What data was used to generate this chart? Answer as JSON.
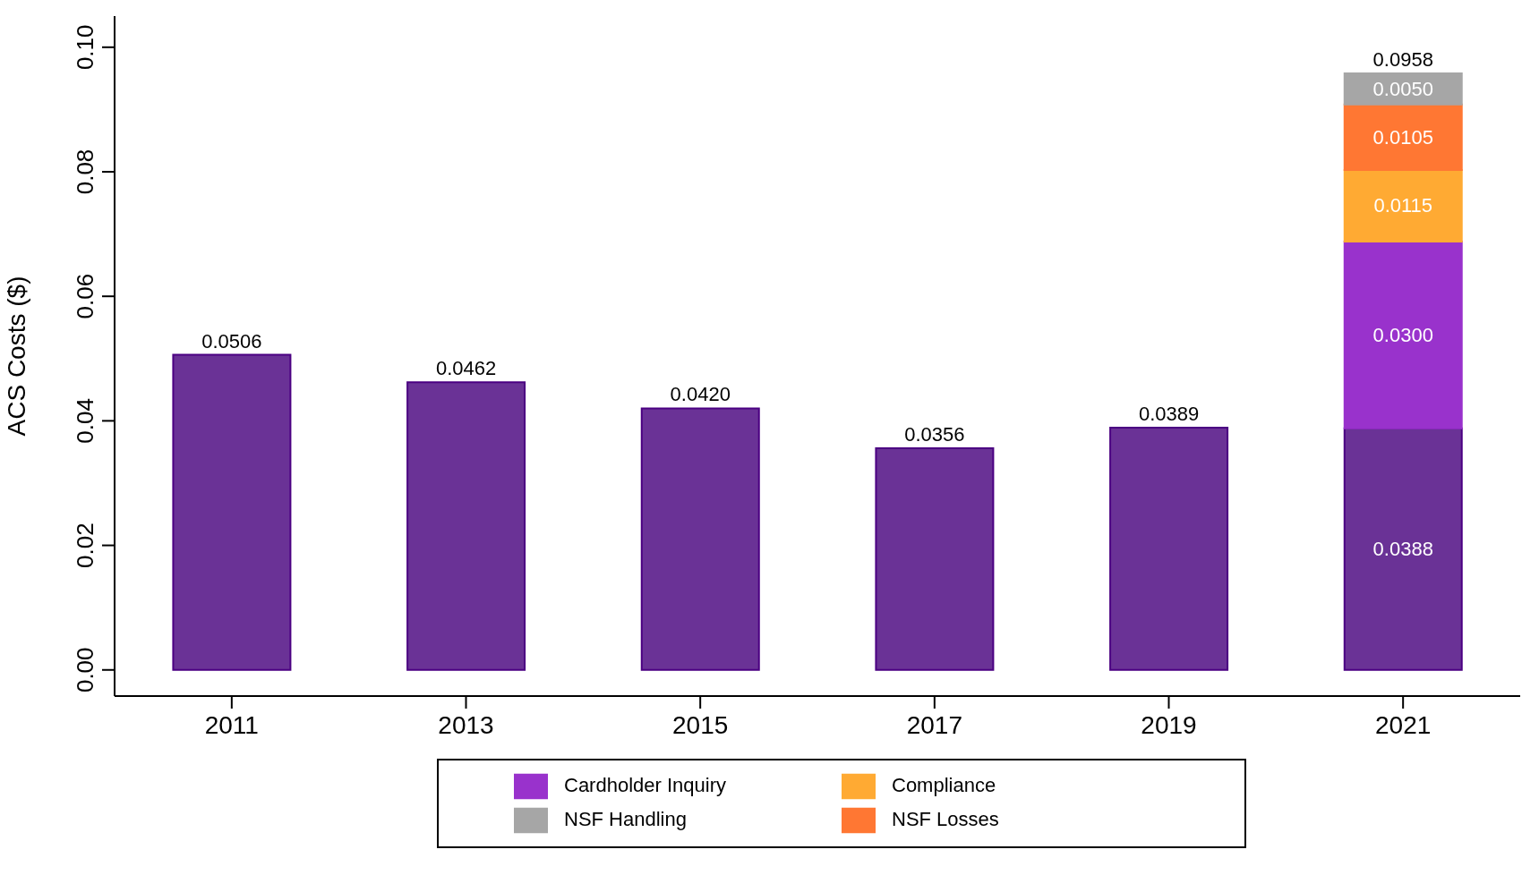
{
  "chart_data": {
    "type": "bar",
    "ylabel": "ACS Costs ($)",
    "categories": [
      "2011",
      "2013",
      "2015",
      "2017",
      "2019",
      "2021"
    ],
    "stacked": true,
    "series": [
      {
        "color": "#6a3296",
        "values": [
          0.0506,
          0.0462,
          0.042,
          0.0356,
          0.0389,
          0.0388
        ],
        "value_labels": [
          null,
          null,
          null,
          null,
          null,
          "0.0388"
        ]
      },
      {
        "name": "Cardholder Inquiry",
        "color": "#9932cc",
        "values": [
          null,
          null,
          null,
          null,
          null,
          0.03
        ],
        "value_labels": [
          null,
          null,
          null,
          null,
          null,
          "0.0300"
        ]
      },
      {
        "name": "Compliance",
        "color": "#ffaa33",
        "values": [
          null,
          null,
          null,
          null,
          null,
          0.0115
        ],
        "value_labels": [
          null,
          null,
          null,
          null,
          null,
          "0.0115"
        ]
      },
      {
        "name": "NSF Losses",
        "color": "#ff7733",
        "values": [
          null,
          null,
          null,
          null,
          null,
          0.0105
        ],
        "value_labels": [
          null,
          null,
          null,
          null,
          null,
          "0.0105"
        ]
      },
      {
        "name": "NSF Handling",
        "color": "#a6a6a6",
        "values": [
          null,
          null,
          null,
          null,
          null,
          0.005
        ],
        "value_labels": [
          null,
          null,
          null,
          null,
          null,
          "0.0050"
        ]
      }
    ],
    "totals": [
      "0.0506",
      "0.0462",
      "0.0420",
      "0.0356",
      "0.0389",
      "0.0958"
    ],
    "ylim": [
      -0.0042,
      0.105
    ],
    "yticks": [
      {
        "value": 0,
        "label": "0.00"
      },
      {
        "value": 0.02,
        "label": "0.02"
      },
      {
        "value": 0.04,
        "label": "0.04"
      },
      {
        "value": 0.06,
        "label": "0.06"
      },
      {
        "value": 0.08,
        "label": "0.08"
      },
      {
        "value": 0.1,
        "label": "0.10"
      }
    ],
    "grid": false,
    "legend": "bottom"
  }
}
